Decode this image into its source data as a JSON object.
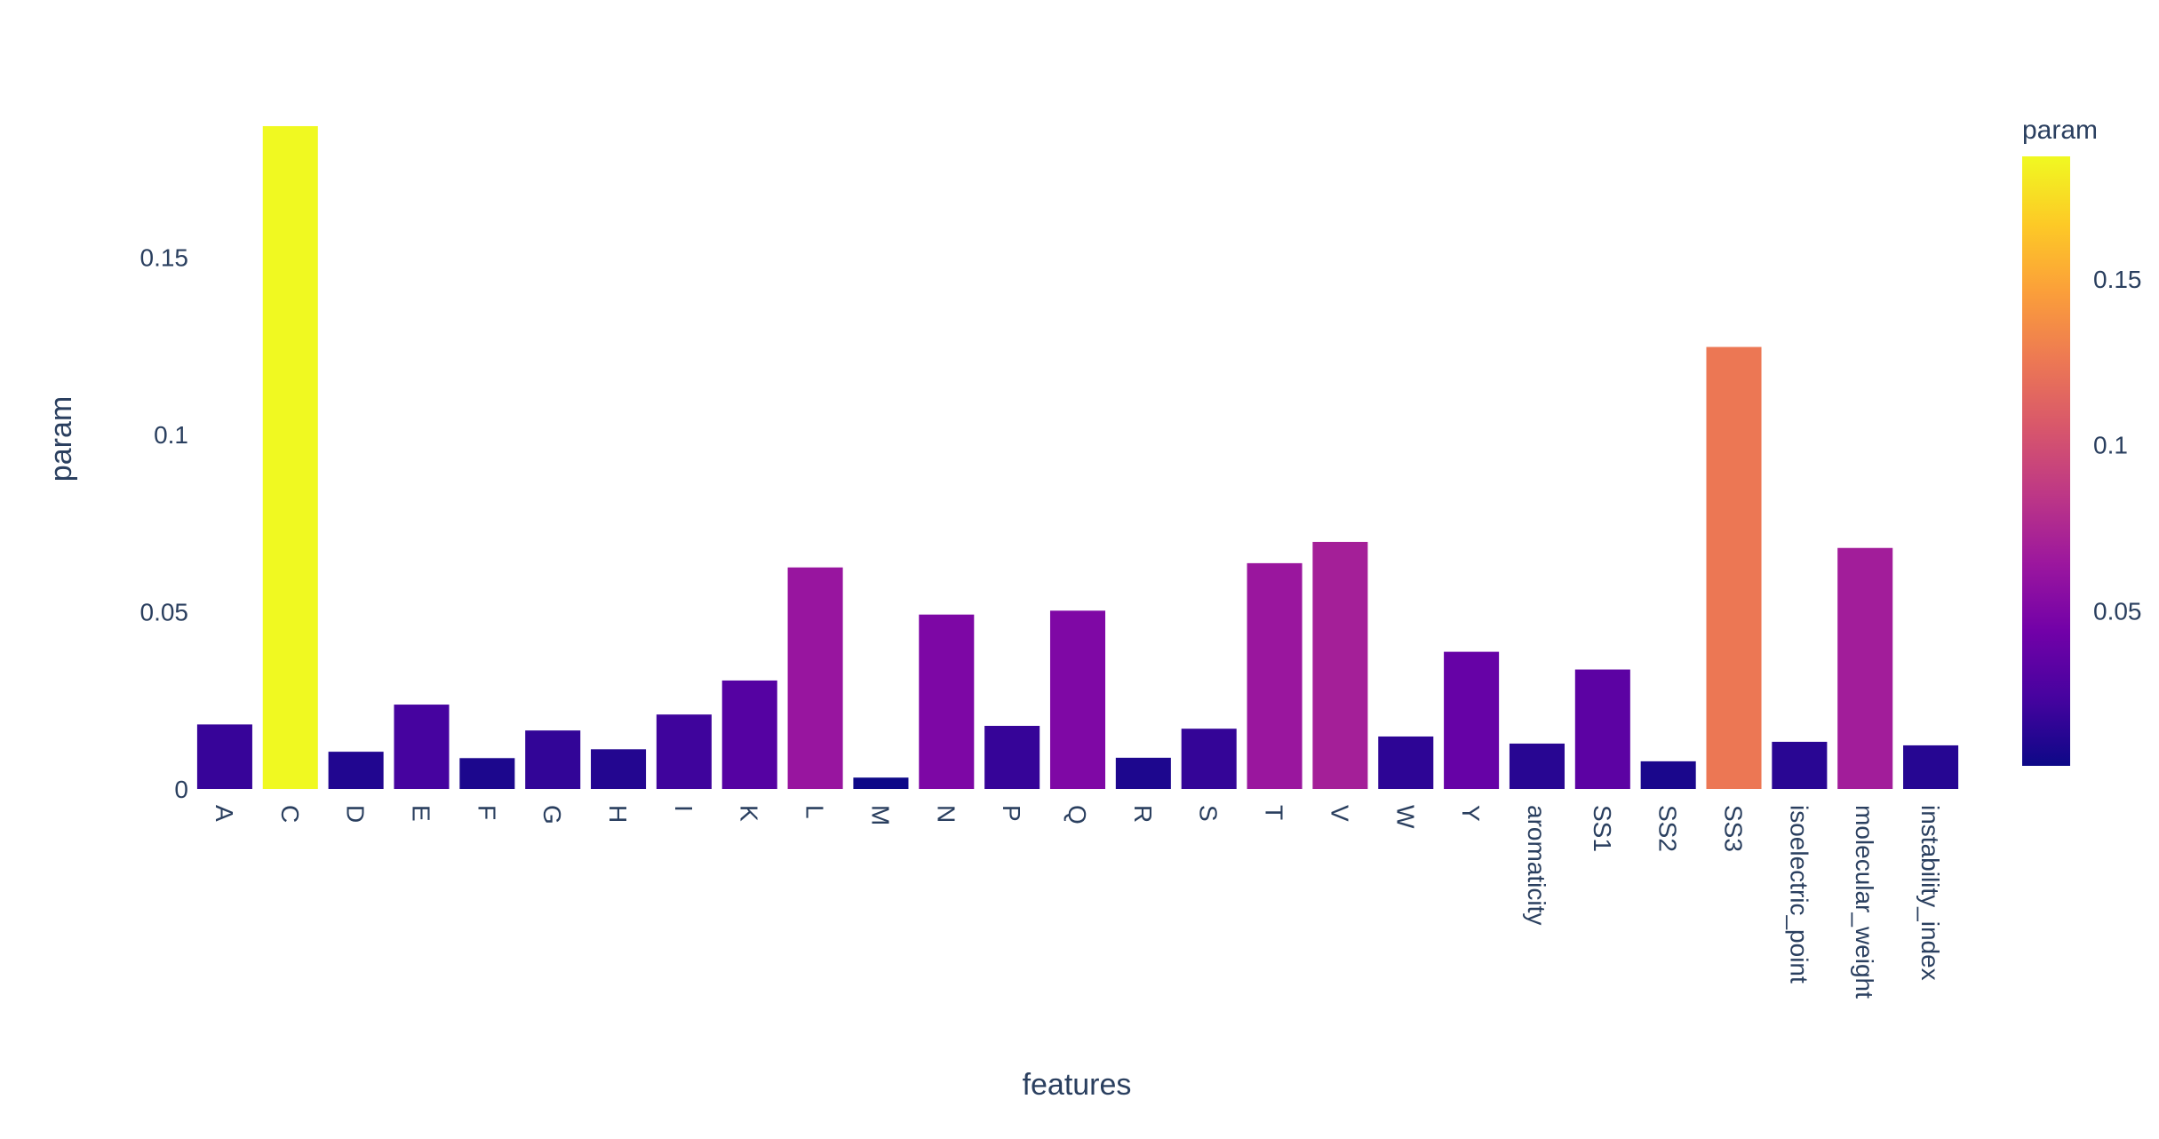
{
  "chart_data": {
    "type": "bar",
    "xlabel": "features",
    "ylabel": "param",
    "ylim": [
      0,
      0.1875
    ],
    "yticks": [
      0,
      0.05,
      0.1,
      0.15
    ],
    "ytick_labels": [
      "0",
      "0.05",
      "0.1",
      "0.15"
    ],
    "grid": false,
    "categories": [
      "A",
      "C",
      "D",
      "E",
      "F",
      "G",
      "H",
      "I",
      "K",
      "L",
      "M",
      "N",
      "P",
      "Q",
      "R",
      "S",
      "T",
      "V",
      "W",
      "Y",
      "aromaticity",
      "SS1",
      "SS2",
      "SS3",
      "isoelectric_point",
      "molecular_weight",
      "instability_index"
    ],
    "values": [
      0.0182,
      0.187,
      0.0105,
      0.0238,
      0.0087,
      0.0165,
      0.0112,
      0.021,
      0.0306,
      0.0625,
      0.0032,
      0.0492,
      0.0178,
      0.0503,
      0.0088,
      0.017,
      0.0637,
      0.0697,
      0.0148,
      0.0387,
      0.0128,
      0.0337,
      0.0078,
      0.1247,
      0.0133,
      0.068,
      0.0123
    ],
    "colorbar": {
      "title": "param",
      "range": [
        0.0032,
        0.187
      ],
      "ticks": [
        0.05,
        0.1,
        0.15
      ],
      "tick_labels": [
        "0.05",
        "0.1",
        "0.15"
      ],
      "colorscale": [
        "#0d0887",
        "#46039f",
        "#7201a8",
        "#9c179e",
        "#bd3786",
        "#d8576b",
        "#ed7953",
        "#fb9f3a",
        "#fdca26",
        "#f0f921"
      ]
    }
  }
}
